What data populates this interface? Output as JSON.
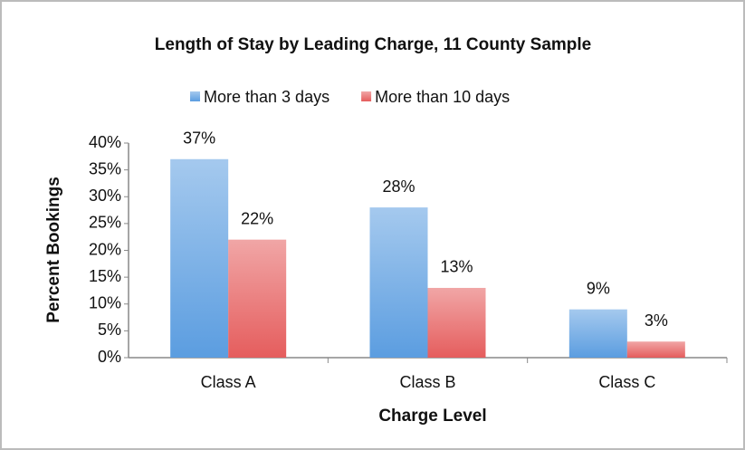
{
  "chart_data": {
    "type": "bar",
    "title": "Length of Stay by Leading Charge, 11 County Sample",
    "x_label": "Charge Level",
    "y_label": "Percent Bookings",
    "categories": [
      "Class A",
      "Class B",
      "Class C"
    ],
    "series": [
      {
        "name": "More than 3 days",
        "color": "#5b9de0",
        "values": [
          37,
          28,
          9
        ],
        "value_labels": [
          "37%",
          "28%",
          "9%"
        ]
      },
      {
        "name": "More than 10 days",
        "color": "#e55d5d",
        "values": [
          22,
          13,
          3
        ],
        "value_labels": [
          "22%",
          "13%",
          "3%"
        ]
      }
    ],
    "ylim": [
      0,
      40
    ],
    "yticks": [
      {
        "value": 0,
        "label": "0%"
      },
      {
        "value": 5,
        "label": "5%"
      },
      {
        "value": 10,
        "label": "10%"
      },
      {
        "value": 15,
        "label": "15%"
      },
      {
        "value": 20,
        "label": "20%"
      },
      {
        "value": 25,
        "label": "25%"
      },
      {
        "value": 30,
        "label": "30%"
      },
      {
        "value": 35,
        "label": "35%"
      },
      {
        "value": 40,
        "label": "40%"
      }
    ],
    "legend": "top",
    "grid": false
  }
}
